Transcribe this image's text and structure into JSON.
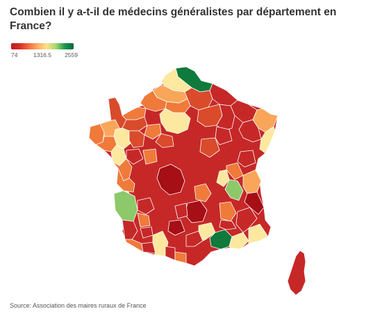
{
  "header": {
    "title": "Combien il y a-t-il de médecins généralistes par département en France?"
  },
  "legend": {
    "min_label": "74",
    "mid_label": "1316.5",
    "max_label": "2559",
    "colors": [
      "#b71c1c",
      "#d73027",
      "#f46d43",
      "#fdae61",
      "#fee08b",
      "#a6d96a",
      "#1a9850",
      "#006837"
    ]
  },
  "map": {
    "region": "France",
    "palette": {
      "darkred": "#a50f15",
      "red": "#c62828",
      "redorange": "#d94b2b",
      "orange": "#f07a3a",
      "lightorange": "#f9a65a",
      "yellow": "#fde8a0",
      "lightgreen": "#8dc96a",
      "green": "#3aa85a",
      "darkgreen": "#0f7a3c",
      "border": "#ffffff"
    },
    "departments": [
      {
        "id": "nord",
        "level": "darkgreen"
      },
      {
        "id": "pas-de-calais",
        "level": "yellow"
      },
      {
        "id": "somme",
        "level": "lightorange"
      },
      {
        "id": "seine-maritime",
        "level": "orange"
      },
      {
        "id": "aisne",
        "level": "redorange"
      },
      {
        "id": "ardennes",
        "level": "red"
      },
      {
        "id": "oise",
        "level": "orange"
      },
      {
        "id": "paris-region",
        "level": "yellow"
      },
      {
        "id": "calvados",
        "level": "orange"
      },
      {
        "id": "manche",
        "level": "redorange"
      },
      {
        "id": "finistere",
        "level": "orange"
      },
      {
        "id": "cotes-armor",
        "level": "lightorange"
      },
      {
        "id": "ille-et-vilaine",
        "level": "yellow"
      },
      {
        "id": "morbihan",
        "level": "orange"
      },
      {
        "id": "loire-atlantique",
        "level": "yellow"
      },
      {
        "id": "vendee",
        "level": "orange"
      },
      {
        "id": "marne",
        "level": "redorange"
      },
      {
        "id": "meuse",
        "level": "red"
      },
      {
        "id": "moselle",
        "level": "red"
      },
      {
        "id": "bas-rhin",
        "level": "lightorange"
      },
      {
        "id": "haut-rhin",
        "level": "yellow"
      },
      {
        "id": "vosges",
        "level": "red"
      },
      {
        "id": "center",
        "level": "darkred"
      },
      {
        "id": "rhone",
        "level": "yellow"
      },
      {
        "id": "isere",
        "level": "lightgreen"
      },
      {
        "id": "gironde",
        "level": "lightgreen"
      },
      {
        "id": "landes",
        "level": "red"
      },
      {
        "id": "pyrenees-atlantiques",
        "level": "orange"
      },
      {
        "id": "haute-garonne",
        "level": "yellow"
      },
      {
        "id": "herault",
        "level": "red"
      },
      {
        "id": "bouches-du-rhone",
        "level": "darkgreen"
      },
      {
        "id": "var",
        "level": "yellow"
      },
      {
        "id": "alpes-maritimes",
        "level": "yellow"
      },
      {
        "id": "alpes-de-haute-provence",
        "level": "red"
      },
      {
        "id": "corse",
        "level": "red"
      }
    ]
  },
  "footer": {
    "source": "Source: Association des maires ruraux de France"
  }
}
